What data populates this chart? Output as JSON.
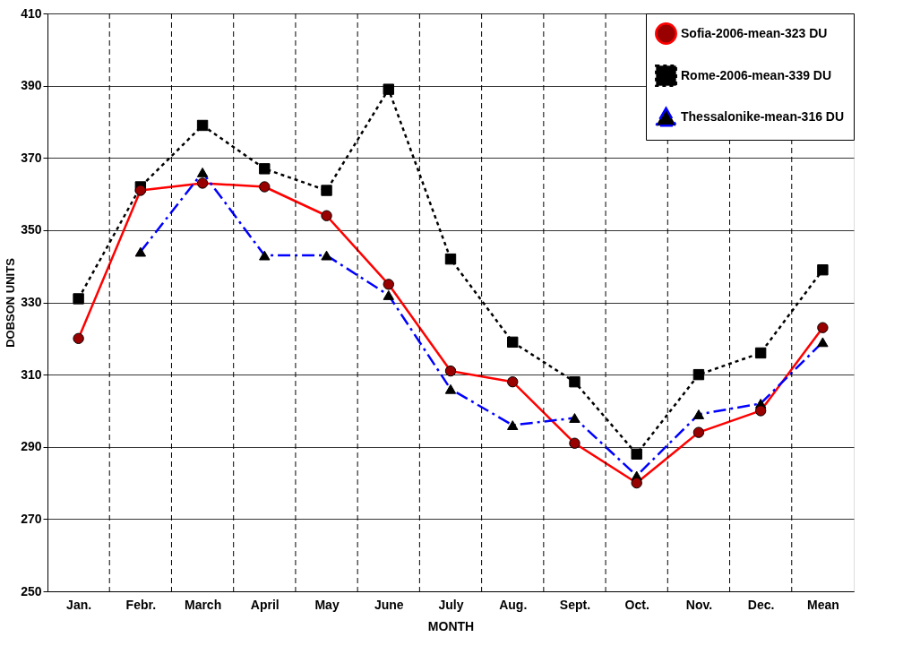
{
  "chart_data": {
    "type": "line",
    "xlabel": "MONTH",
    "ylabel": "DOBSON UNITS",
    "categories": [
      "Jan.",
      "Febr.",
      "March",
      "April",
      "May",
      "June",
      "July",
      "Aug.",
      "Sept.",
      "Oct.",
      "Nov.",
      "Dec.",
      "Mean"
    ],
    "series": [
      {
        "name": "Sofia-2006-mean-323 DU",
        "color": "#ff0000",
        "marker": "circle",
        "line_style": "solid",
        "values": [
          320,
          361,
          363,
          362,
          354,
          335,
          311,
          308,
          291,
          280,
          294,
          300,
          323
        ]
      },
      {
        "name": "Rome-2006-mean-339 DU",
        "color": "#000000",
        "marker": "square",
        "line_style": "dotted",
        "values": [
          331,
          362,
          379,
          367,
          361,
          389,
          342,
          319,
          308,
          288,
          310,
          316,
          339
        ]
      },
      {
        "name": "Thessalonike-mean-316 DU",
        "color": "#0000ff",
        "marker": "triangle",
        "line_style": "dashed",
        "values": [
          null,
          344,
          366,
          343,
          343,
          332,
          306,
          296,
          298,
          282,
          299,
          302,
          319
        ]
      }
    ],
    "ylim": [
      250,
      410
    ],
    "yticks": [
      250,
      270,
      290,
      310,
      330,
      350,
      370,
      390,
      410
    ],
    "grid": true,
    "legend": "top right"
  }
}
